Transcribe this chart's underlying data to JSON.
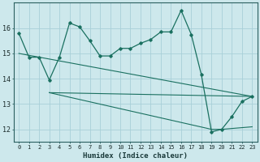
{
  "xlabel": "Humidex (Indice chaleur)",
  "xlim": [
    -0.5,
    23.5
  ],
  "ylim": [
    11.5,
    17.0
  ],
  "yticks": [
    12,
    13,
    14,
    15,
    16
  ],
  "xticks": [
    0,
    1,
    2,
    3,
    4,
    5,
    6,
    7,
    8,
    9,
    10,
    11,
    12,
    13,
    14,
    15,
    16,
    17,
    18,
    19,
    20,
    21,
    22,
    23
  ],
  "background_color": "#cde8ec",
  "grid_color": "#a8d0d8",
  "line_color": "#1a7060",
  "curve1_x": [
    0,
    1,
    2,
    3,
    4,
    5,
    6,
    7,
    8,
    9,
    10,
    11,
    12,
    13,
    14,
    15,
    16,
    17,
    18,
    19,
    20,
    21,
    22,
    23
  ],
  "curve1_y": [
    15.8,
    14.85,
    14.85,
    13.95,
    14.85,
    16.2,
    16.05,
    15.5,
    14.9,
    14.9,
    15.2,
    15.2,
    15.4,
    15.55,
    15.85,
    15.85,
    16.7,
    15.75,
    14.15,
    11.9,
    12.0,
    12.5,
    13.1,
    13.3
  ],
  "line2_x": [
    0,
    23
  ],
  "line2_y": [
    15.0,
    13.3
  ],
  "line3_x": [
    3,
    23
  ],
  "line3_y": [
    13.45,
    13.3
  ],
  "line4_x": [
    3,
    19,
    20,
    23
  ],
  "line4_y": [
    13.45,
    12.0,
    12.0,
    12.1
  ]
}
